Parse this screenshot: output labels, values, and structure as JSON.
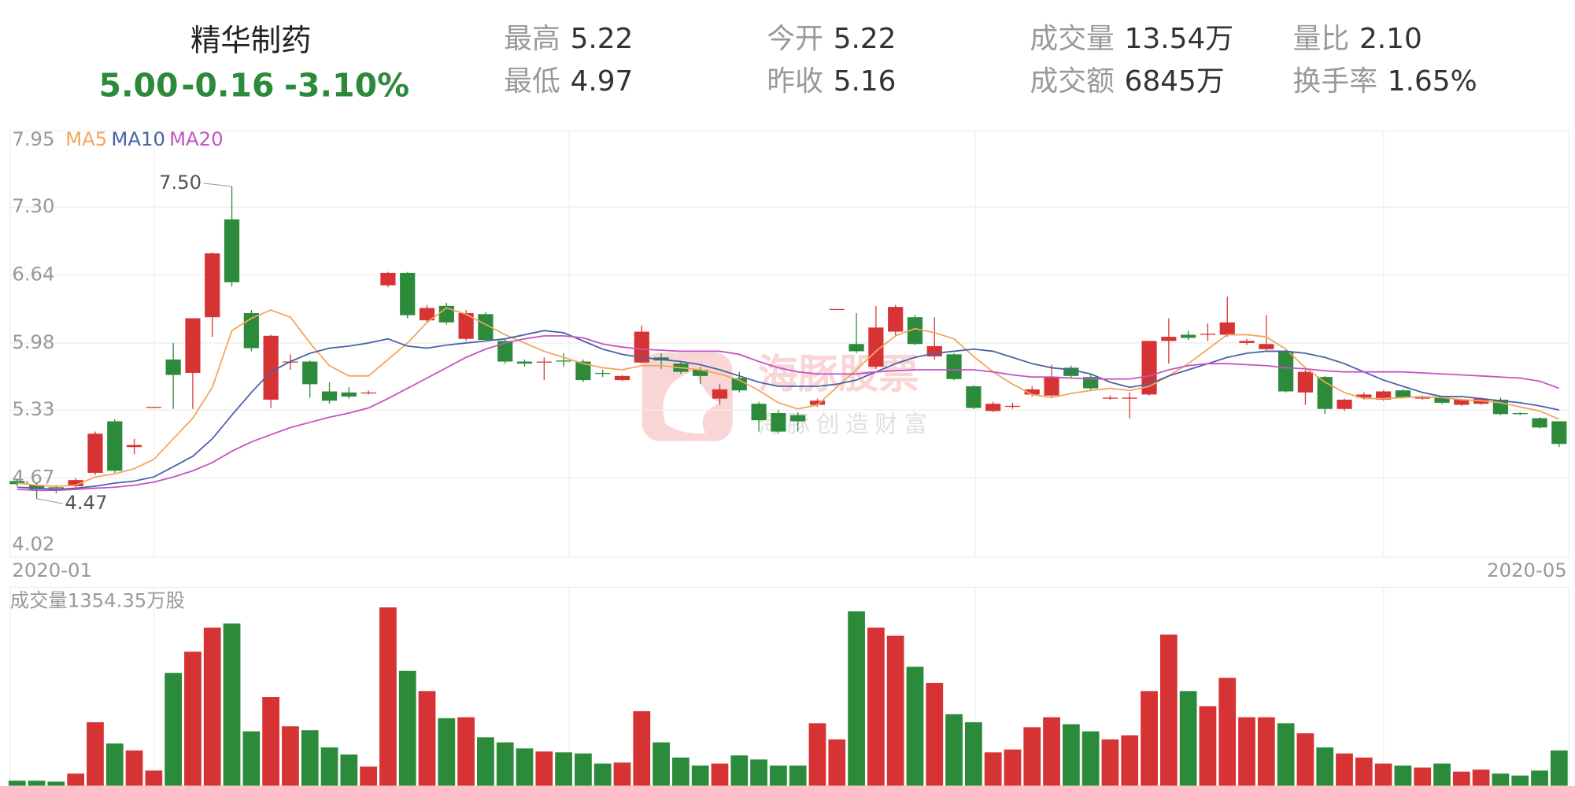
{
  "header": {
    "name": "精华制药",
    "price": "5.00",
    "change": "-0.16",
    "change_pct": "-3.10%",
    "stats": [
      {
        "label": "最高",
        "value": "5.22"
      },
      {
        "label": "最低",
        "value": "4.97"
      },
      {
        "label": "今开",
        "value": "5.22"
      },
      {
        "label": "昨收",
        "value": "5.16"
      },
      {
        "label": "成交量",
        "value": "13.54万"
      },
      {
        "label": "成交额",
        "value": "6845万"
      },
      {
        "label": "量比",
        "value": "2.10"
      },
      {
        "label": "换手率",
        "value": "1.65%"
      }
    ]
  },
  "watermark": {
    "brand": "海豚股票",
    "slogan": "海豚创造财富"
  },
  "chart_data": {
    "type": "candlestick",
    "categories": [
      "2020-01",
      null,
      null,
      null,
      null,
      null,
      null,
      null,
      null,
      null,
      null,
      null,
      null,
      null,
      null,
      null,
      null,
      null,
      null,
      null,
      null,
      null,
      null,
      null,
      null,
      null,
      null,
      null,
      null,
      null,
      null,
      null,
      null,
      null,
      null,
      null,
      null,
      null,
      null,
      null,
      null,
      null,
      null,
      null,
      null,
      null,
      null,
      null,
      null,
      null,
      null,
      null,
      null,
      null,
      null,
      null,
      null,
      null,
      null,
      null,
      null,
      null,
      null,
      null,
      null,
      null,
      null,
      null,
      null,
      null,
      null,
      null,
      null,
      null,
      null,
      null,
      null,
      null,
      null,
      "2020-05"
    ],
    "open": [
      4.64,
      4.6,
      4.58,
      4.59,
      4.72,
      5.22,
      4.97,
      5.36,
      5.82,
      5.69,
      6.23,
      7.18,
      6.27,
      5.43,
      5.8,
      5.8,
      5.51,
      5.5,
      5.5,
      6.54,
      6.66,
      6.2,
      6.34,
      6.02,
      6.26,
      6.0,
      5.8,
      5.79,
      5.81,
      5.8,
      5.69,
      5.62,
      5.79,
      5.84,
      5.78,
      5.72,
      5.44,
      5.64,
      5.39,
      5.3,
      5.28,
      5.38,
      6.31,
      5.97,
      5.75,
      6.09,
      6.23,
      5.85,
      5.87,
      5.56,
      5.32,
      5.36,
      5.48,
      5.47,
      5.74,
      5.65,
      5.44,
      5.44,
      5.48,
      6.0,
      6.06,
      6.06,
      6.06,
      5.98,
      5.92,
      5.9,
      5.5,
      5.65,
      5.34,
      5.45,
      5.43,
      5.52,
      5.44,
      5.45,
      5.38,
      5.39,
      5.43,
      5.3,
      5.25,
      5.22
    ],
    "high": [
      4.66,
      4.62,
      4.6,
      4.67,
      5.12,
      5.24,
      5.05,
      5.36,
      5.98,
      6.22,
      6.86,
      7.5,
      6.3,
      6.06,
      5.87,
      5.81,
      5.6,
      5.55,
      5.52,
      6.67,
      6.67,
      6.35,
      6.37,
      6.3,
      6.28,
      6.02,
      5.82,
      5.84,
      5.88,
      5.82,
      5.72,
      5.67,
      6.15,
      5.88,
      5.8,
      5.75,
      5.58,
      5.7,
      5.41,
      5.33,
      5.31,
      5.44,
      6.31,
      6.27,
      6.34,
      6.35,
      6.25,
      6.23,
      5.88,
      5.57,
      5.41,
      5.4,
      5.56,
      5.77,
      5.76,
      5.67,
      5.47,
      5.5,
      6.0,
      6.22,
      6.1,
      6.17,
      6.43,
      6.02,
      6.25,
      5.91,
      5.72,
      5.66,
      5.44,
      5.5,
      5.52,
      5.53,
      5.47,
      5.46,
      5.44,
      5.45,
      5.45,
      5.31,
      5.26,
      5.22
    ],
    "low": [
      4.59,
      4.47,
      4.52,
      4.57,
      4.7,
      4.72,
      4.9,
      5.36,
      5.34,
      5.34,
      6.04,
      6.53,
      5.9,
      5.35,
      5.72,
      5.45,
      5.39,
      5.44,
      5.48,
      6.52,
      6.22,
      6.18,
      6.16,
      6.0,
      6.0,
      5.78,
      5.75,
      5.62,
      5.75,
      5.6,
      5.65,
      5.61,
      5.78,
      5.73,
      5.68,
      5.58,
      5.38,
      5.5,
      5.12,
      5.1,
      5.12,
      5.36,
      6.31,
      5.88,
      5.73,
      6.05,
      5.96,
      5.82,
      5.62,
      5.34,
      5.31,
      5.34,
      5.46,
      5.45,
      5.64,
      5.52,
      5.43,
      5.25,
      5.47,
      5.78,
      6.01,
      6.0,
      6.04,
      5.96,
      5.91,
      5.5,
      5.38,
      5.29,
      5.32,
      5.43,
      5.42,
      5.44,
      5.43,
      5.39,
      5.37,
      5.38,
      5.28,
      5.28,
      5.15,
      4.97
    ],
    "close": [
      4.61,
      4.56,
      4.57,
      4.65,
      5.1,
      4.74,
      4.99,
      5.36,
      5.67,
      6.22,
      6.85,
      6.57,
      5.93,
      6.05,
      5.8,
      5.58,
      5.42,
      5.46,
      5.5,
      6.66,
      6.25,
      6.32,
      6.18,
      6.27,
      6.01,
      5.8,
      5.78,
      5.8,
      5.8,
      5.62,
      5.68,
      5.66,
      6.09,
      5.81,
      5.7,
      5.66,
      5.53,
      5.52,
      5.23,
      5.12,
      5.22,
      5.42,
      6.31,
      5.9,
      6.13,
      6.33,
      5.97,
      5.95,
      5.63,
      5.35,
      5.39,
      5.37,
      5.53,
      5.65,
      5.66,
      5.54,
      5.45,
      5.45,
      6.0,
      6.04,
      6.03,
      6.07,
      6.18,
      6.0,
      5.97,
      5.51,
      5.7,
      5.34,
      5.43,
      5.48,
      5.51,
      5.45,
      5.45,
      5.4,
      5.43,
      5.44,
      5.29,
      5.29,
      5.16,
      5.0
    ],
    "up_color": "#d63434",
    "down_color": "#2b8b3b",
    "ylim": [
      4.02,
      7.95
    ],
    "yticks": [
      7.95,
      {
        "value": 7.3,
        "label": "7.30"
      },
      6.64,
      5.98,
      5.33,
      4.67,
      4.02
    ],
    "grid": true,
    "ma": [
      {
        "name": "MA5",
        "color": "#f3a55c",
        "values": [
          4.62,
          4.6,
          4.59,
          4.6,
          4.68,
          4.71,
          4.76,
          4.85,
          5.05,
          5.25,
          5.55,
          6.1,
          6.22,
          6.3,
          6.23,
          5.98,
          5.76,
          5.66,
          5.66,
          5.82,
          5.98,
          6.18,
          6.32,
          6.26,
          6.16,
          6.06,
          5.98,
          5.9,
          5.84,
          5.78,
          5.74,
          5.72,
          5.76,
          5.76,
          5.74,
          5.72,
          5.68,
          5.62,
          5.52,
          5.4,
          5.34,
          5.38,
          5.55,
          5.72,
          5.9,
          6.05,
          6.12,
          6.08,
          6.02,
          5.85,
          5.7,
          5.58,
          5.48,
          5.45,
          5.49,
          5.52,
          5.54,
          5.52,
          5.56,
          5.66,
          5.78,
          5.92,
          6.06,
          6.06,
          6.04,
          5.92,
          5.74,
          5.6,
          5.5,
          5.44,
          5.44,
          5.45,
          5.46,
          5.45,
          5.43,
          5.42,
          5.4,
          5.36,
          5.32,
          5.24
        ]
      },
      {
        "name": "MA10",
        "color": "#4a62a8",
        "values": [
          4.58,
          4.57,
          4.56,
          4.57,
          4.59,
          4.62,
          4.64,
          4.68,
          4.78,
          4.88,
          5.05,
          5.28,
          5.5,
          5.7,
          5.8,
          5.88,
          5.93,
          5.95,
          5.98,
          6.02,
          5.95,
          5.93,
          5.96,
          5.98,
          6.0,
          6.02,
          6.06,
          6.1,
          6.08,
          6.0,
          5.92,
          5.87,
          5.84,
          5.82,
          5.8,
          5.77,
          5.72,
          5.66,
          5.6,
          5.56,
          5.56,
          5.56,
          5.58,
          5.62,
          5.7,
          5.78,
          5.84,
          5.88,
          5.9,
          5.92,
          5.9,
          5.84,
          5.78,
          5.74,
          5.72,
          5.68,
          5.6,
          5.55,
          5.58,
          5.66,
          5.72,
          5.78,
          5.84,
          5.88,
          5.9,
          5.9,
          5.88,
          5.84,
          5.78,
          5.7,
          5.62,
          5.56,
          5.5,
          5.46,
          5.46,
          5.44,
          5.42,
          5.4,
          5.37,
          5.33
        ]
      },
      {
        "name": "MA20",
        "color": "#c653c2",
        "values": [
          4.56,
          4.55,
          4.55,
          4.56,
          4.57,
          4.58,
          4.6,
          4.63,
          4.68,
          4.74,
          4.82,
          4.93,
          5.02,
          5.09,
          5.16,
          5.21,
          5.26,
          5.3,
          5.35,
          5.44,
          5.54,
          5.64,
          5.74,
          5.84,
          5.92,
          5.98,
          6.02,
          6.05,
          6.05,
          6.03,
          5.97,
          5.94,
          5.92,
          5.91,
          5.9,
          5.9,
          5.9,
          5.87,
          5.8,
          5.74,
          5.7,
          5.68,
          5.68,
          5.68,
          5.7,
          5.71,
          5.72,
          5.72,
          5.72,
          5.72,
          5.7,
          5.67,
          5.65,
          5.65,
          5.64,
          5.63,
          5.63,
          5.63,
          5.66,
          5.72,
          5.76,
          5.78,
          5.78,
          5.77,
          5.76,
          5.74,
          5.73,
          5.71,
          5.7,
          5.7,
          5.7,
          5.7,
          5.69,
          5.68,
          5.67,
          5.66,
          5.65,
          5.64,
          5.61,
          5.54
        ]
      }
    ],
    "annotations": [
      {
        "value": 7.5,
        "label": "7.50"
      },
      {
        "value": 4.47,
        "label": "4.47"
      }
    ],
    "volume": {
      "title": "成交量1354.35万股",
      "ylim": [
        0,
        1354.35
      ],
      "values": [
        38,
        38,
        31,
        92,
        482,
        321,
        268,
        115,
        857,
        1018,
        1201,
        1232,
        413,
        673,
        451,
        421,
        291,
        237,
        145,
        1354.35,
        872,
        719,
        513,
        520,
        367,
        329,
        283,
        260,
        253,
        245,
        168,
        176,
        566,
        329,
        214,
        153,
        168,
        230,
        199,
        153,
        153,
        474,
        352,
        1324,
        1201,
        1140,
        903,
        781,
        543,
        482,
        253,
        275,
        444,
        520,
        467,
        413,
        352,
        383,
        719,
        1148,
        719,
        604,
        819,
        520,
        520,
        474,
        398,
        291,
        245,
        214,
        168,
        153,
        138,
        168,
        107,
        122,
        92,
        77,
        115,
        268
      ]
    }
  }
}
